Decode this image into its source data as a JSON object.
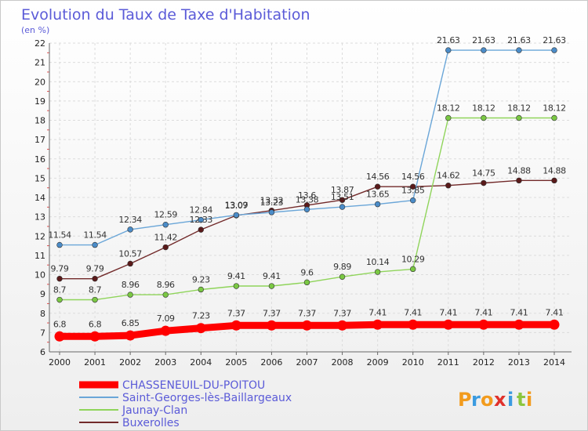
{
  "chart_data": {
    "type": "line",
    "title": "Evolution du Taux de Taxe d'Habitation",
    "subtitle": "(en %)",
    "xlabel": "",
    "ylabel": "",
    "x": [
      2000,
      2001,
      2002,
      2003,
      2004,
      2005,
      2006,
      2007,
      2008,
      2009,
      2010,
      2011,
      2012,
      2013,
      2014
    ],
    "ylim": [
      6,
      22
    ],
    "yticks": [
      6,
      7,
      8,
      9,
      10,
      11,
      12,
      13,
      14,
      15,
      16,
      17,
      18,
      19,
      20,
      21,
      22
    ],
    "grid": true,
    "legend_position": "bottom-left",
    "series": [
      {
        "name": "Buxerolles",
        "color": "#722a2a",
        "marker": "#5a1a1a",
        "values": [
          9.79,
          9.79,
          10.57,
          11.42,
          12.33,
          13.07,
          13.32,
          13.6,
          13.87,
          14.56,
          14.56,
          14.62,
          14.75,
          14.88,
          14.88
        ],
        "labels": [
          "9.79",
          "9.79",
          "10.57",
          "11.42",
          "12.33",
          "13.07",
          "13.32",
          "13.6",
          "13.87",
          "14.56",
          "14.56",
          "14.62",
          "14.75",
          "14.88",
          "14.88"
        ]
      },
      {
        "name": "Jaunay-Clan",
        "color": "#8fd45a",
        "marker": "#7ac843",
        "values": [
          8.7,
          8.7,
          8.96,
          8.96,
          9.23,
          9.41,
          9.41,
          9.6,
          9.89,
          10.14,
          10.29,
          18.12,
          18.12,
          18.12,
          18.12
        ],
        "labels": [
          "8.7",
          "8.7",
          "8.96",
          "8.96",
          "9.23",
          "9.41",
          "9.41",
          "9.6",
          "9.89",
          "10.14",
          "10.29",
          "18.12",
          "18.12",
          "18.12",
          "18.12"
        ]
      },
      {
        "name": "Saint-Georges-lès-Baillargeaux",
        "color": "#6aa6d8",
        "marker": "#4b8cc8",
        "values": [
          11.54,
          11.54,
          12.34,
          12.59,
          12.84,
          13.09,
          13.23,
          13.38,
          13.51,
          13.65,
          13.85,
          21.63,
          21.63,
          21.63,
          21.63
        ],
        "labels": [
          "11.54",
          "11.54",
          "12.34",
          "12.59",
          "12.84",
          "13.09",
          "13.23",
          "13.38",
          "13.51",
          "13.65",
          "13.85",
          "21.63",
          "21.63",
          "21.63",
          "21.63"
        ]
      },
      {
        "name": "CHASSENEUIL-DU-POITOU",
        "color": "#ff0000",
        "marker": "#ff0000",
        "values": [
          6.8,
          6.8,
          6.85,
          7.09,
          7.23,
          7.37,
          7.37,
          7.37,
          7.37,
          7.41,
          7.41,
          7.41,
          7.41,
          7.41,
          7.41
        ],
        "labels": [
          "6.8",
          "6.8",
          "6.85",
          "7.09",
          "7.23",
          "7.37",
          "7.37",
          "7.37",
          "7.37",
          "7.41",
          "7.41",
          "7.41",
          "7.41",
          "7.41",
          "7.41"
        ]
      }
    ],
    "legend": [
      "CHASSENEUIL-DU-POITOU",
      "Saint-Georges-lès-Baillargeaux",
      "Jaunay-Clan",
      "Buxerolles"
    ]
  },
  "logo": {
    "letters": [
      "P",
      "r",
      "o",
      "x",
      "i",
      "t",
      "i"
    ],
    "colors": [
      "#f29b1d",
      "#3b9be0",
      "#f29b1d",
      "#e0312b",
      "#3b9be0",
      "#8cc63f",
      "#f29b1d"
    ]
  }
}
